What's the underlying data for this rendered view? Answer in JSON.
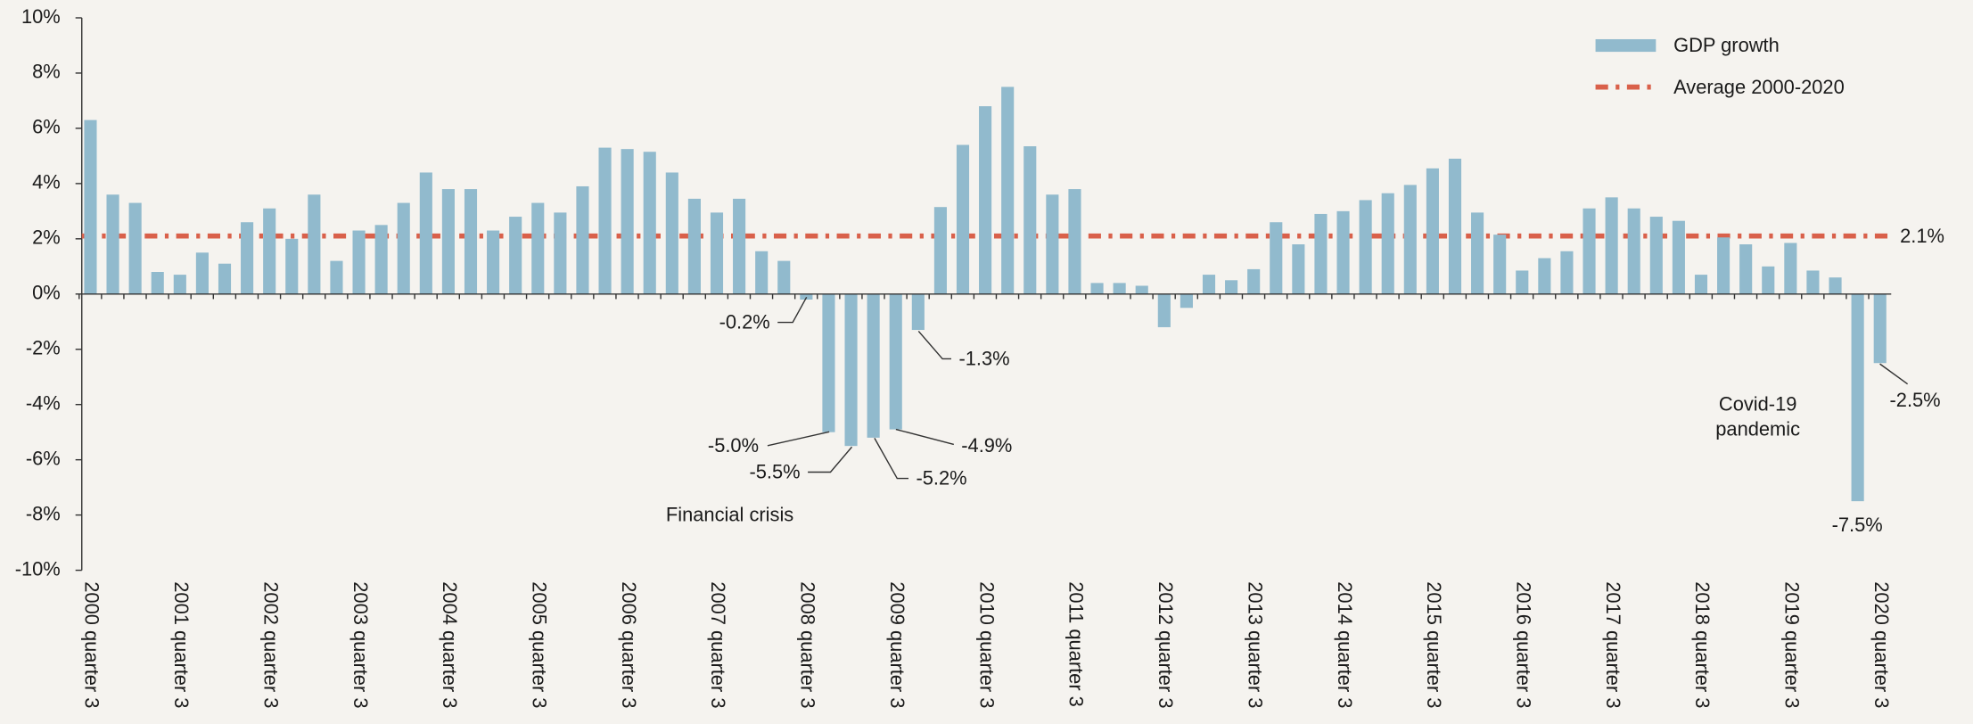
{
  "chart_data": {
    "type": "bar",
    "categories": [
      "2000 quarter 3",
      null,
      null,
      null,
      "2001 quarter 3",
      null,
      null,
      null,
      "2002 quarter 3",
      null,
      null,
      null,
      "2003 quarter 3",
      null,
      null,
      null,
      "2004 quarter 3",
      null,
      null,
      null,
      "2005 quarter 3",
      null,
      null,
      null,
      "2006 quarter 3",
      null,
      null,
      null,
      "2007 quarter 3",
      null,
      null,
      null,
      "2008 quarter 3",
      null,
      null,
      null,
      "2009 quarter 3",
      null,
      null,
      null,
      "2010 quarter 3",
      null,
      null,
      null,
      "2011 quarter 3",
      null,
      null,
      null,
      "2012 quarter 3",
      null,
      null,
      null,
      "2013 quarter 3",
      null,
      null,
      null,
      "2014 quarter 3",
      null,
      null,
      null,
      "2015 quarter 3",
      null,
      null,
      null,
      "2016 quarter 3",
      null,
      null,
      null,
      "2017 quarter 3",
      null,
      null,
      null,
      "2018 quarter 3",
      null,
      null,
      null,
      "2019 quarter 3",
      null,
      null,
      null,
      "2020 quarter 3"
    ],
    "series": [
      {
        "name": "GDP growth",
        "color": "#91bacd",
        "values": [
          6.3,
          3.6,
          3.3,
          0.8,
          0.7,
          1.5,
          1.1,
          2.6,
          3.1,
          2.0,
          3.6,
          1.2,
          2.3,
          2.5,
          3.3,
          4.4,
          3.8,
          3.8,
          2.3,
          2.8,
          3.3,
          2.95,
          3.9,
          5.3,
          5.25,
          5.15,
          4.4,
          3.45,
          2.95,
          3.45,
          1.55,
          1.2,
          -0.2,
          -5.0,
          -5.5,
          -5.2,
          -4.9,
          -1.3,
          3.15,
          5.4,
          6.8,
          7.5,
          5.35,
          3.6,
          3.8,
          0.4,
          0.4,
          0.3,
          -1.2,
          -0.5,
          0.7,
          0.5,
          0.9,
          2.6,
          1.8,
          2.9,
          3.0,
          3.4,
          3.65,
          3.95,
          4.55,
          4.9,
          2.95,
          2.15,
          0.85,
          1.3,
          1.55,
          3.1,
          3.5,
          3.1,
          2.8,
          2.65,
          0.7,
          2.05,
          1.8,
          1.0,
          1.85,
          0.85,
          0.6,
          -7.5,
          -2.5
        ],
        "value_labels": [
          null,
          null,
          null,
          null,
          null,
          null,
          null,
          null,
          null,
          null,
          null,
          null,
          null,
          null,
          null,
          null,
          null,
          null,
          null,
          null,
          null,
          null,
          null,
          null,
          null,
          null,
          null,
          null,
          null,
          null,
          null,
          null,
          "-0.2%",
          "-5.0%",
          "-5.5%",
          "-5.2%",
          "-4.9%",
          "-1.3%",
          null,
          null,
          null,
          null,
          null,
          null,
          null,
          null,
          null,
          null,
          null,
          null,
          null,
          null,
          null,
          null,
          null,
          null,
          null,
          null,
          null,
          null,
          null,
          null,
          null,
          null,
          null,
          null,
          null,
          null,
          null,
          null,
          null,
          null,
          null,
          null,
          null,
          null,
          null,
          null,
          null,
          "-7.5%",
          "-2.5%"
        ]
      }
    ],
    "reference_line": {
      "name": "Average 2000-2020",
      "value": 2.1,
      "label": "2.1%",
      "color": "#d9604a"
    },
    "annotations": [
      {
        "lines": [
          "Financial crisis"
        ]
      },
      {
        "lines": [
          "Covid-19",
          "pandemic"
        ]
      }
    ],
    "ylim": [
      -10,
      10
    ],
    "yticks": [
      {
        "value": -10,
        "label": "-10%"
      },
      {
        "value": -8,
        "label": "-8%"
      },
      {
        "value": -6,
        "label": "-6%"
      },
      {
        "value": -4,
        "label": "-4%"
      },
      {
        "value": -2,
        "label": "-2%"
      },
      {
        "value": 0,
        "label": "0%"
      },
      {
        "value": 2,
        "label": "2%"
      },
      {
        "value": 4,
        "label": "4%"
      },
      {
        "value": 6,
        "label": "6%"
      },
      {
        "value": 8,
        "label": "8%"
      },
      {
        "value": 10,
        "label": "10%"
      }
    ],
    "legend": "upper right",
    "grid": false
  }
}
